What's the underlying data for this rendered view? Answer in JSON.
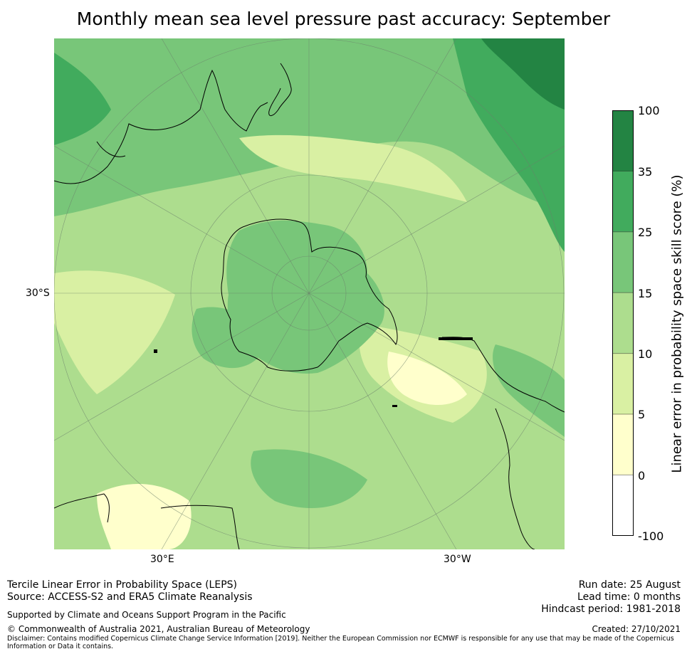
{
  "title": "Monthly mean sea level pressure past accuracy: September",
  "map": {
    "lat_label": "30°S",
    "lon_labels": [
      "30°E",
      "30°W"
    ]
  },
  "colorbar": {
    "label": "Linear error in probability space skill score (%)",
    "ticks": [
      "100",
      "35",
      "25",
      "15",
      "10",
      "5",
      "0",
      "-100"
    ],
    "colors": [
      "#ffffff",
      "#ffffcc",
      "#d9f0a3",
      "#addd8e",
      "#78c679",
      "#41ab5d",
      "#238443"
    ]
  },
  "footer": {
    "left_line1": "Tercile Linear Error in Probability Space (LEPS)",
    "left_line2": "Source: ACCESS-S2 and ERA5 Climate Reanalysis",
    "support": "Supported by Climate and Oceans Support Program in the Pacific",
    "copyright": "© Commonwealth of Australia 2021, Australian Bureau of Meteorology",
    "disclaimer_line1": "Disclaimer: Contains modified Copernicus Climate Change Service Information [2019]. Neither the European Commission nor ECMWF is responsible for any use that may be made of the Copernicus",
    "disclaimer_line2": "Information or Data it contains.",
    "run_date": "Run date: 25 August",
    "lead_time": "Lead time: 0 months",
    "hindcast": "Hindcast period: 1981-2018",
    "created": "Created: 27/10/2021"
  }
}
